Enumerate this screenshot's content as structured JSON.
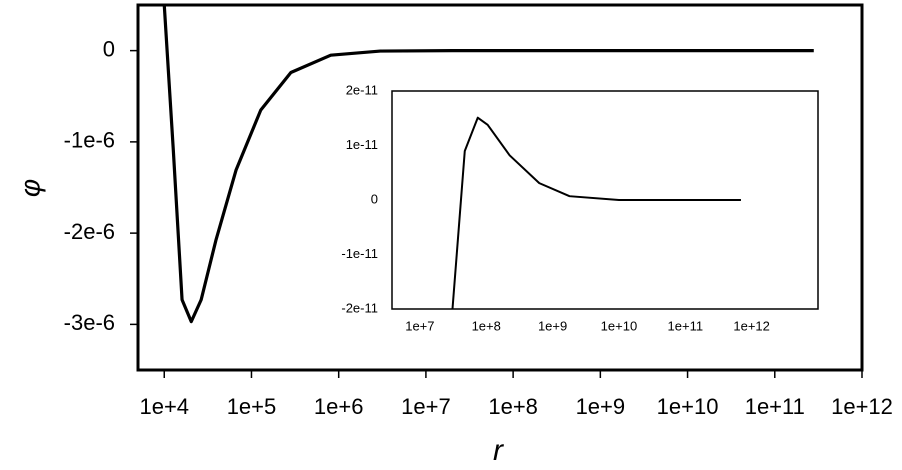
{
  "chart_data": [
    {
      "type": "line",
      "xlabel": "r",
      "ylabel": "φ",
      "xscale": "log",
      "color": "#000000",
      "x": [
        10000,
        12700,
        16000,
        20400,
        26500,
        39300,
        66500,
        128000,
        283000,
        811000,
        3000000,
        20000000,
        280000000000
      ],
      "values": [
        5e-07,
        -1.09e-06,
        -2.73e-06,
        -2.97e-06,
        -2.73e-06,
        -2.07e-06,
        -1.31e-06,
        -6.5e-07,
        -2.4e-07,
        -5e-08,
        -5e-09,
        0,
        0
      ],
      "xlim": [
        5000,
        1000000000000
      ],
      "ylim": [
        -3.5e-06,
        5e-07
      ],
      "xticks": [
        {
          "value": 10000,
          "label": "1e+4"
        },
        {
          "value": 100000,
          "label": "1e+5"
        },
        {
          "value": 1000000,
          "label": "1e+6"
        },
        {
          "value": 10000000,
          "label": "1e+7"
        },
        {
          "value": 100000000,
          "label": "1e+8"
        },
        {
          "value": 1000000000,
          "label": "1e+9"
        },
        {
          "value": 10000000000,
          "label": "1e+10"
        },
        {
          "value": 100000000000,
          "label": "1e+11"
        },
        {
          "value": 1000000000000,
          "label": "1e+12"
        }
      ],
      "yticks": [
        0,
        {
          "value": -1e-06,
          "label": "-1e-6"
        },
        {
          "value": -2e-06,
          "label": "-2e-6"
        },
        {
          "value": -3e-06,
          "label": "-3e-6"
        }
      ]
    },
    {
      "type": "line",
      "xscale": "log",
      "color": "#000000",
      "x": [
        31000000,
        47500000,
        74500000,
        105000000,
        225000000,
        630000000,
        1800000000,
        10000000000,
        690000000000
      ],
      "values": [
        -2e-11,
        9e-12,
        1.51e-11,
        1.38e-11,
        8.2e-12,
        3.1e-12,
        7e-13,
        0,
        0
      ],
      "xlim": [
        3800000,
        10000000000000
      ],
      "ylim": [
        -2e-11,
        2e-11
      ],
      "xticks": [
        {
          "value": 10000000,
          "label": "1e+7"
        },
        {
          "value": 100000000,
          "label": "1e+8"
        },
        {
          "value": 1000000000,
          "label": "1e+9"
        },
        {
          "value": 10000000000,
          "label": "1e+10"
        },
        {
          "value": 100000000000,
          "label": "1e+11"
        },
        {
          "value": 1000000000000,
          "label": "1e+12"
        }
      ],
      "yticks": [
        {
          "value": 2e-11,
          "label": "2e-11"
        },
        {
          "value": 1e-11,
          "label": "1e-11"
        },
        0,
        {
          "value": -1e-11,
          "label": "-1e-11"
        },
        {
          "value": -2e-11,
          "label": "-2e-11"
        }
      ]
    }
  ]
}
